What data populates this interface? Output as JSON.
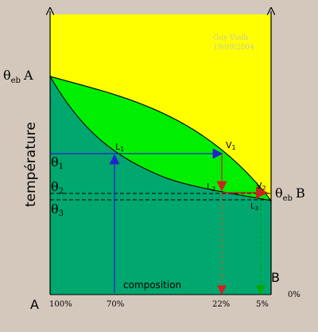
{
  "diagram": {
    "watermark_author": "Guy Vielh",
    "watermark_date": "19/09/2004",
    "theta_eb_a_symbol": "θ",
    "theta_eb_a_sub": "eb",
    "theta_eb_a_letter": "A",
    "theta_eb_b_symbol": "θ",
    "theta_eb_b_sub": "eb",
    "theta_eb_b_letter": "B",
    "y_axis_label": "température",
    "theta1_sym": "θ",
    "theta1_sub": "1",
    "theta2_sym": "θ",
    "theta2_sub": "2",
    "theta3_sym": "θ",
    "theta3_sub": "3",
    "l1_letter": "L",
    "l1_sub": "1",
    "v1_letter": "V",
    "v1_sub": "1",
    "l2_letter": "L",
    "l2_sub": "2",
    "v2_letter": "V",
    "v2_sub": "2",
    "l3_letter": "L",
    "l3_sub": "3",
    "x_axis_label": "composition",
    "corner_a": "A",
    "corner_b": "B",
    "tick_100": "100%",
    "tick_70": "70%",
    "tick_22": "22%",
    "tick_5": "5%",
    "tick_0": "0%",
    "colors": {
      "background": "#d4c8bc",
      "vapor": "#ffff00",
      "two_phase": "#00ee00",
      "liquid": "#00a76f",
      "blue_line": "#2222cc",
      "red_line": "#cc2222"
    }
  }
}
